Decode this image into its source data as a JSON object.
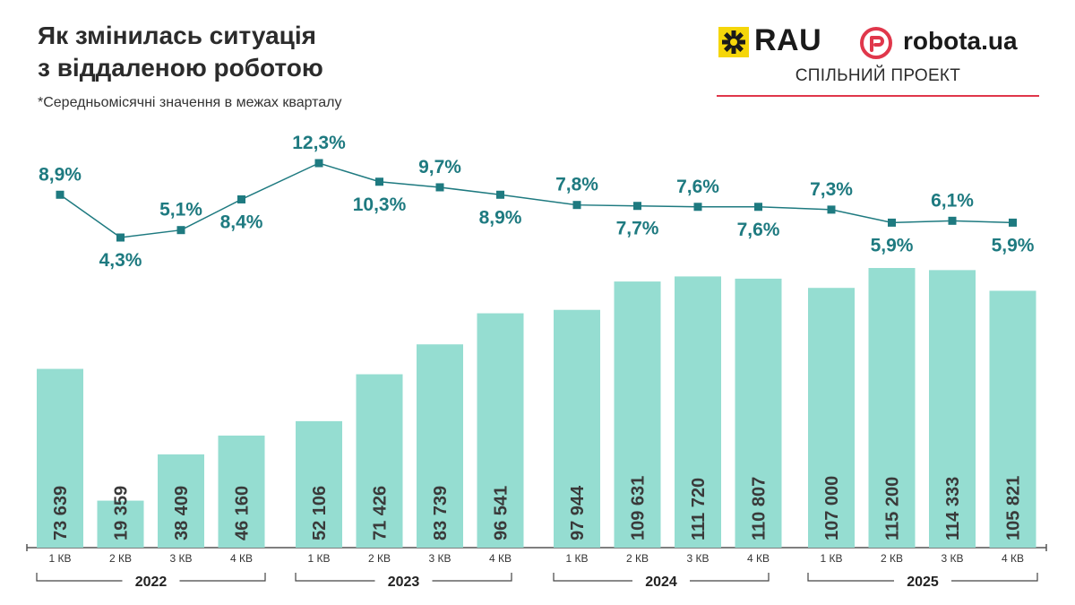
{
  "header": {
    "title_line1": "Як змінилась ситуація",
    "title_line2": "з віддаленою роботою",
    "note": "*Середньомісячні значення в межах кварталу"
  },
  "logos": {
    "rau": "RAU",
    "robota": "robota.ua",
    "joint_label": "СПІЛЬНИЙ ПРОЕКТ",
    "rau_mark_icon": "rau-star-icon",
    "robota_mark_icon": "robota-r-icon"
  },
  "colors": {
    "bar": "#95ddd1",
    "line": "#1e7a80",
    "marker": "#1e7a80",
    "percent_label": "#1e7a80",
    "bar_label": "#3a3a3a",
    "rau_yellow": "#f5d60a",
    "robota_red": "#e0374b"
  },
  "chart_data": {
    "type": "bar+line",
    "categories": [
      "1 КВ",
      "2 КВ",
      "3 КВ",
      "4 КВ",
      "1 КВ",
      "2 КВ",
      "3 КВ",
      "4 КВ",
      "1 КВ",
      "2 КВ",
      "3 КВ",
      "4 КВ",
      "1 КВ",
      "2 КВ",
      "3 КВ",
      "4 КВ"
    ],
    "groups": [
      {
        "label": "2022",
        "count": 4
      },
      {
        "label": "2023",
        "count": 4
      },
      {
        "label": "2024",
        "count": 4
      },
      {
        "label": "2025",
        "count": 4
      }
    ],
    "series": [
      {
        "type": "bar",
        "values": [
          73639,
          19359,
          38409,
          46160,
          52106,
          71426,
          83739,
          96541,
          97944,
          109631,
          111720,
          110807,
          107000,
          115200,
          114333,
          105821
        ],
        "labels": [
          "73 639",
          "19 359",
          "38 409",
          "46 160",
          "52 106",
          "71 426",
          "83 739",
          "96 541",
          "97 944",
          "109 631",
          "111 720",
          "110 807",
          "107 000",
          "115 200",
          "114 333",
          "105 821"
        ]
      },
      {
        "type": "line",
        "values": [
          8.9,
          4.3,
          5.1,
          8.4,
          12.3,
          10.3,
          9.7,
          8.9,
          7.8,
          7.7,
          7.6,
          7.6,
          7.3,
          5.9,
          6.1,
          5.9
        ],
        "labels": [
          "8,9%",
          "4,3%",
          "5,1%",
          "8,4%",
          "12,3%",
          "10,3%",
          "9,7%",
          "8,9%",
          "7,8%",
          "7,7%",
          "7,6%",
          "7,6%",
          "7,3%",
          "5,9%",
          "6,1%",
          "5,9%"
        ],
        "label_pos": [
          "above",
          "below",
          "above",
          "below",
          "above",
          "below",
          "above",
          "below",
          "above",
          "below",
          "above",
          "below",
          "above",
          "below",
          "above",
          "below"
        ]
      }
    ],
    "grid": false,
    "legend": "none"
  }
}
